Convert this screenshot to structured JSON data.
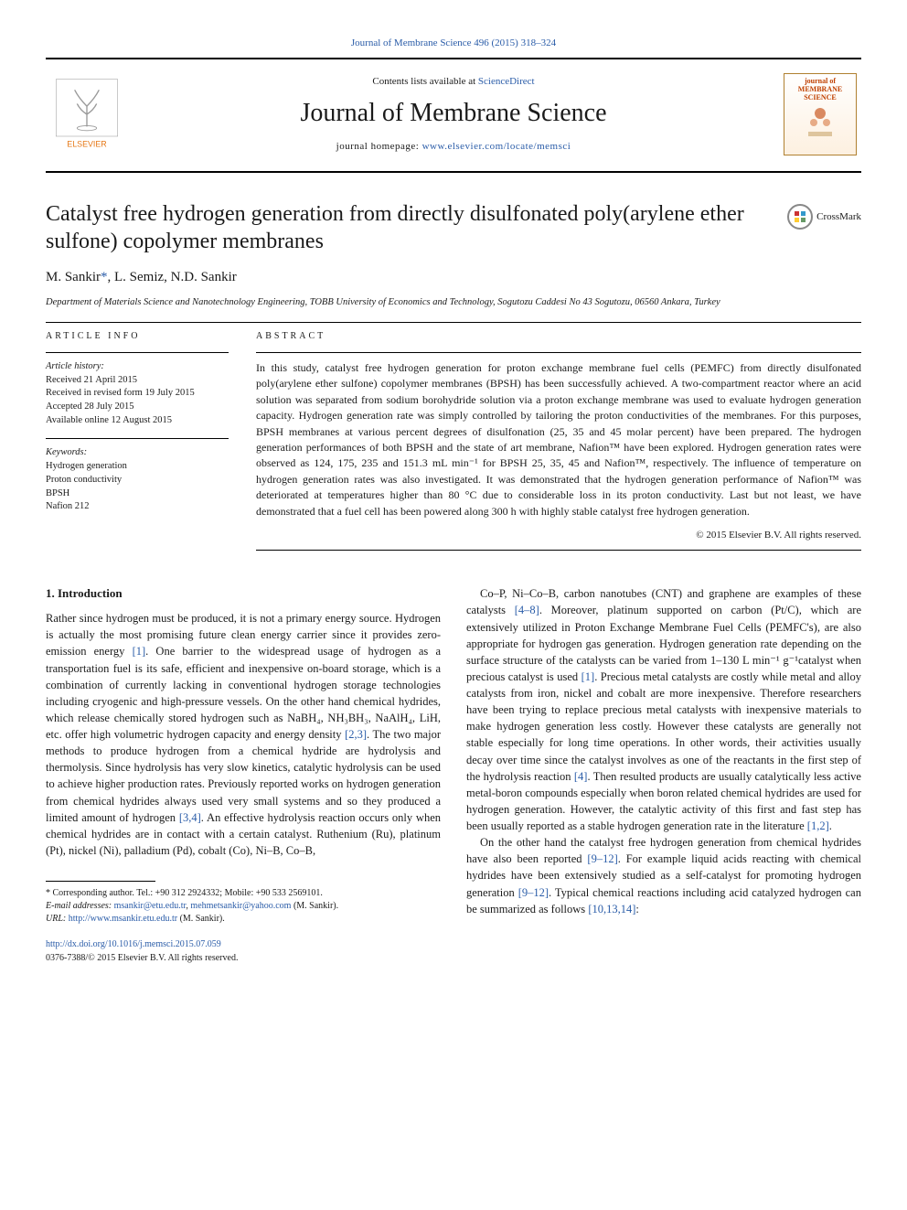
{
  "top_journal_ref": "Journal of Membrane Science 496 (2015) 318–324",
  "masthead": {
    "contents_prefix": "Contents lists available at ",
    "contents_link": "ScienceDirect",
    "journal_name": "Journal of Membrane Science",
    "homepage_prefix": "journal homepage: ",
    "homepage_url": "www.elsevier.com/locate/memsci",
    "publisher_label": "ELSEVIER",
    "cover_label_1": "journal of",
    "cover_label_2": "MEMBRANE",
    "cover_label_3": "SCIENCE"
  },
  "crossmark_label": "CrossMark",
  "title": "Catalyst free hydrogen generation from directly disulfonated poly(arylene ether sulfone) copolymer membranes",
  "authors_html": "M. Sankir",
  "authors_rest": ", L. Semiz, N.D. Sankir",
  "corr_marker": "*",
  "affiliation": "Department of Materials Science and Nanotechnology Engineering, TOBB University of Economics and Technology, Sogutozu Caddesi No 43 Sogutozu, 06560 Ankara, Turkey",
  "info": {
    "head": "article info",
    "history_label": "Article history:",
    "received": "Received 21 April 2015",
    "revised": "Received in revised form 19 July 2015",
    "accepted": "Accepted 28 July 2015",
    "online": "Available online 12 August 2015",
    "keywords_label": "Keywords:",
    "keywords": [
      "Hydrogen generation",
      "Proton conductivity",
      "BPSH",
      "Nafion 212"
    ]
  },
  "abstract": {
    "head": "abstract",
    "text": "In this study, catalyst free hydrogen generation for proton exchange membrane fuel cells (PEMFC) from directly disulfonated poly(arylene ether sulfone) copolymer membranes (BPSH) has been successfully achieved. A two-compartment reactor where an acid solution was separated from sodium borohydride solution via a proton exchange membrane was used to evaluate hydrogen generation capacity. Hydrogen generation rate was simply controlled by tailoring the proton conductivities of the membranes. For this purposes, BPSH membranes at various percent degrees of disulfonation (25, 35 and 45 molar percent) have been prepared. The hydrogen generation performances of both BPSH and the state of art membrane, Nafion™ have been explored. Hydrogen generation rates were observed as 124, 175, 235 and 151.3 mL min⁻¹ for BPSH 25, 35, 45 and Nafion™, respectively. The influence of temperature on hydrogen generation rates was also investigated. It was demonstrated that the hydrogen generation performance of Nafion™ was deteriorated at temperatures higher than 80 °C due to considerable loss in its proton conductivity. Last but not least, we have demonstrated that a fuel cell has been powered along 300 h with highly stable catalyst free hydrogen generation.",
    "copyright": "© 2015 Elsevier B.V. All rights reserved."
  },
  "section1_head": "1.  Introduction",
  "para1": "Rather since hydrogen must be produced, it is not a primary energy source. Hydrogen is actually the most promising future clean energy carrier since it provides zero-emission energy [1]. One barrier to the widespread usage of hydrogen as a transportation fuel is its safe, efficient and inexpensive on-board storage, which is a combination of currently lacking in conventional hydrogen storage technologies including cryogenic and high-pressure vessels. On the other hand chemical hydrides, which release chemically stored hydrogen such as NaBH₄, NH₃BH₃, NaAlH₄, LiH, etc. offer high volumetric hydrogen capacity and energy density [2,3]. The two major methods to produce hydrogen from a chemical hydride are hydrolysis and thermolysis. Since hydrolysis has very slow kinetics, catalytic hydrolysis can be used to achieve higher production rates. Previously reported works on hydrogen generation from chemical hydrides always used very small systems and so they produced a limited amount of hydrogen [3,4]. An effective hydrolysis reaction occurs only when chemical hydrides are in contact with a certain catalyst. Ruthenium (Ru), platinum (Pt), nickel (Ni), palladium (Pd), cobalt (Co), Ni–B, Co–B,",
  "para1b": "Co–P, Ni–Co–B, carbon nanotubes (CNT) and graphene are examples of these catalysts [4–8]. Moreover, platinum supported on carbon (Pt/C), which are extensively utilized in Proton Exchange Membrane Fuel Cells (PEMFC's), are also appropriate for hydrogen gas generation. Hydrogen generation rate depending on the surface structure of the catalysts can be varied from 1–130 L min⁻¹ g⁻¹catalyst when precious catalyst is used [1]. Precious metal catalysts are costly while metal and alloy catalysts from iron, nickel and cobalt are more inexpensive. Therefore researchers have been trying to replace precious metal catalysts with inexpensive materials to make hydrogen generation less costly. However these catalysts are generally not stable especially for long time operations. In other words, their activities usually decay over time since the catalyst involves as one of the reactants in the first step of the hydrolysis reaction [4]. Then resulted products are usually catalytically less active metal-boron compounds especially when boron related chemical hydrides are used for hydrogen generation. However, the catalytic activity of this first and fast step has been usually reported as a stable hydrogen generation rate in the literature [1,2].",
  "para2": "On the other hand the catalyst free hydrogen generation from chemical hydrides have also been reported [9–12]. For example liquid acids reacting with chemical hydrides have been extensively studied as a self-catalyst for promoting hydrogen generation [9–12]. Typical chemical reactions including acid catalyzed hydrogen can be summarized as follows [10,13,14]:",
  "footnotes": {
    "corr_label": "* Corresponding author. Tel.: +90 312 2924332; Mobile: +90 533 2569101.",
    "email_label": "E-mail addresses:",
    "email1": "msankir@etu.edu.tr",
    "email2": "mehmetsankir@yahoo.com",
    "email_name": "(M. Sankir).",
    "url_label": "URL:",
    "url": "http://www.msankir.etu.edu.tr",
    "url_name": "(M. Sankir)."
  },
  "doi": {
    "link": "http://dx.doi.org/10.1016/j.memsci.2015.07.059",
    "issn": "0376-7388/© 2015 Elsevier B.V. All rights reserved."
  },
  "colors": {
    "link": "#2a5ca8",
    "accent": "#c04000"
  }
}
